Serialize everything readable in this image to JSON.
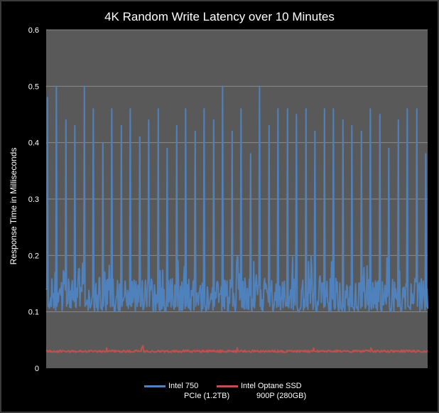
{
  "chart_data": {
    "type": "line",
    "title": "4K Random Write Latency over 10 Minutes",
    "xlabel": "",
    "ylabel": "Response Time in Milliseconds",
    "ylim": [
      0,
      0.6
    ],
    "yticks": [
      "0",
      "0.1",
      "0.2",
      "0.3",
      "0.4",
      "0.5",
      "0.6"
    ],
    "grid": true,
    "legend_position": "bottom",
    "background_color": "#595959",
    "series": [
      {
        "name": "Intel 750 PCIe (1.2TB)",
        "name_lines": [
          "Intel 750",
          "PCIe (1.2TB)"
        ],
        "color": "#4f81bd",
        "baseline": 0.13,
        "spike_peaks": [
          0.48,
          0.5,
          0.44,
          0.43,
          0.5,
          0.46,
          0.4,
          0.46,
          0.43,
          0.46,
          0.41,
          0.44,
          0.46,
          0.39,
          0.43,
          0.46,
          0.42,
          0.46,
          0.44,
          0.5,
          0.42,
          0.46,
          0.38,
          0.5,
          0.43,
          0.46,
          0.46,
          0.45,
          0.46,
          0.42,
          0.46,
          0.46,
          0.44,
          0.43,
          0.42,
          0.46,
          0.45,
          0.39,
          0.44,
          0.46,
          0.46,
          0.38
        ]
      },
      {
        "name": "Intel Optane SSD 900P (280GB)",
        "name_lines": [
          "Intel Optane SSD",
          "900P (280GB)"
        ],
        "color": "#c0504d",
        "baseline": 0.03
      }
    ]
  }
}
